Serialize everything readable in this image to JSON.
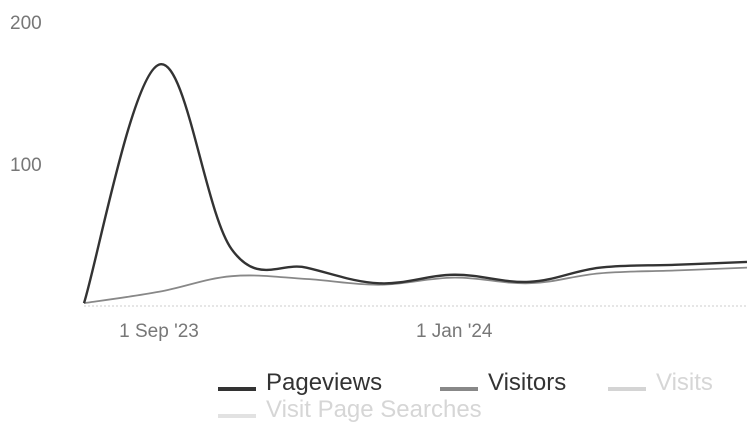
{
  "chart_data": {
    "type": "line",
    "title": "",
    "xlabel": "",
    "ylabel": "",
    "ylim": [
      0,
      200
    ],
    "y_ticks": [
      "200",
      "100"
    ],
    "x_ticks": [
      "1 Sep '23",
      "1 Jan '24"
    ],
    "x_dates": [
      "2023-08-01",
      "2023-09-01",
      "2023-10-01",
      "2023-11-01",
      "2023-12-01",
      "2024-01-01",
      "2024-02-01",
      "2024-03-01",
      "2024-04-01",
      "2024-05-01"
    ],
    "series": [
      {
        "name": "Pageviews",
        "color": "#333333",
        "values": [
          2,
          170,
          40,
          27,
          16,
          22,
          17,
          27,
          29,
          31
        ]
      },
      {
        "name": "Visitors",
        "color": "#888888",
        "values": [
          2,
          10,
          21,
          19,
          15,
          20,
          16,
          23,
          25,
          27
        ]
      },
      {
        "name": "Visits",
        "color": "#d4d4d4",
        "values": []
      },
      {
        "name": "Visit Page Searches",
        "color": "#e2e2e2",
        "values": []
      }
    ],
    "grid": false,
    "legend_position": "bottom"
  }
}
